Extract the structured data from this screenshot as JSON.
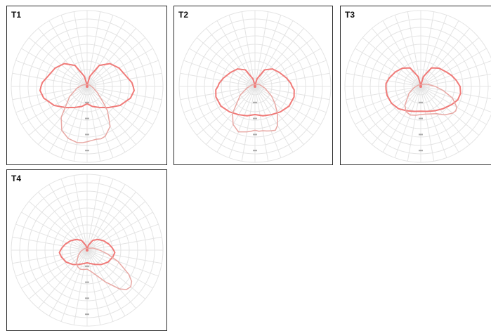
{
  "colors": {
    "grid": "#e4e4e4",
    "primary_curve": "#f07a78",
    "secondary_curve": "#e8a8a4",
    "tick_label": "#8a8a8a",
    "border": "#2b2b2b"
  },
  "chart_data": [
    {
      "type": "polar",
      "title": "T1",
      "grid": true,
      "rings": 9,
      "spokes_deg": 10,
      "rmax": 1.0,
      "series": [
        {
          "angles_deg": [
            0,
            15,
            30,
            45,
            60,
            75,
            85,
            90,
            95,
            105,
            120,
            135,
            150,
            165,
            180,
            195,
            210,
            225,
            240,
            255,
            265,
            270,
            275,
            285,
            300,
            315,
            330,
            345,
            360
          ],
          "r": [
            0.3,
            0.36,
            0.42,
            0.52,
            0.66,
            0.78,
            0.82,
            0.8,
            0.78,
            0.7,
            0.64,
            0.56,
            0.42,
            0.18,
            0.02,
            0.18,
            0.42,
            0.56,
            0.64,
            0.7,
            0.78,
            0.8,
            0.82,
            0.78,
            0.66,
            0.52,
            0.42,
            0.36,
            0.3
          ]
        },
        {
          "angles_deg": [
            0,
            5,
            10,
            15,
            20,
            30,
            40,
            45,
            50,
            60,
            80,
            120,
            160,
            180,
            200,
            220,
            240,
            260,
            280,
            300,
            320,
            330,
            340,
            350,
            355,
            360
          ],
          "r": [
            0.96,
            0.94,
            0.93,
            0.94,
            0.92,
            0.8,
            0.55,
            0.4,
            0.3,
            0.2,
            0.1,
            0.05,
            0.03,
            0.02,
            0.03,
            0.04,
            0.06,
            0.1,
            0.18,
            0.35,
            0.7,
            0.88,
            0.96,
            0.99,
            0.98,
            0.96
          ]
        }
      ],
      "tick_labels": [
        "",
        "",
        "",
        "",
        ""
      ]
    },
    {
      "type": "polar",
      "title": "T2",
      "grid": true,
      "rings": 9,
      "spokes_deg": 10,
      "rmax": 1.0,
      "series": [
        {
          "angles_deg": [
            0,
            15,
            30,
            45,
            60,
            75,
            85,
            90,
            95,
            105,
            120,
            135,
            150,
            165,
            180,
            195,
            210,
            225,
            240,
            255,
            265,
            270,
            275,
            285,
            300,
            315,
            330,
            345,
            360
          ],
          "r": [
            0.5,
            0.54,
            0.58,
            0.64,
            0.7,
            0.72,
            0.7,
            0.66,
            0.64,
            0.58,
            0.5,
            0.44,
            0.34,
            0.14,
            0.02,
            0.14,
            0.34,
            0.44,
            0.5,
            0.58,
            0.64,
            0.66,
            0.7,
            0.72,
            0.7,
            0.64,
            0.58,
            0.54,
            0.5
          ]
        },
        {
          "angles_deg": [
            0,
            5,
            10,
            15,
            20,
            25,
            30,
            35,
            40,
            50,
            60,
            80,
            120,
            160,
            180,
            200,
            240,
            280,
            300,
            320,
            330,
            340,
            350,
            355,
            360
          ],
          "r": [
            0.78,
            0.8,
            0.8,
            0.82,
            0.84,
            0.86,
            0.8,
            0.7,
            0.62,
            0.46,
            0.34,
            0.18,
            0.08,
            0.03,
            0.02,
            0.03,
            0.06,
            0.14,
            0.3,
            0.62,
            0.78,
            0.86,
            0.82,
            0.8,
            0.78
          ]
        }
      ],
      "tick_labels": [
        "",
        "",
        "",
        "",
        ""
      ]
    },
    {
      "type": "polar",
      "title": "T3",
      "grid": true,
      "rings": 9,
      "spokes_deg": 10,
      "rmax": 1.0,
      "series": [
        {
          "angles_deg": [
            0,
            15,
            30,
            45,
            60,
            70,
            80,
            90,
            100,
            110,
            120,
            135,
            150,
            165,
            180,
            195,
            210,
            225,
            240,
            255,
            265,
            270,
            275,
            285,
            300,
            315,
            330,
            345,
            360
          ],
          "r": [
            0.44,
            0.46,
            0.5,
            0.56,
            0.64,
            0.7,
            0.72,
            0.7,
            0.64,
            0.58,
            0.52,
            0.46,
            0.38,
            0.18,
            0.02,
            0.18,
            0.38,
            0.46,
            0.52,
            0.58,
            0.62,
            0.62,
            0.62,
            0.62,
            0.6,
            0.56,
            0.5,
            0.46,
            0.44
          ]
        },
        {
          "angles_deg": [
            0,
            10,
            20,
            30,
            40,
            50,
            55,
            60,
            70,
            80,
            90,
            110,
            140,
            170,
            180,
            200,
            240,
            280,
            300,
            320,
            330,
            340,
            350,
            360
          ],
          "r": [
            0.5,
            0.5,
            0.52,
            0.56,
            0.66,
            0.74,
            0.76,
            0.74,
            0.6,
            0.4,
            0.26,
            0.12,
            0.05,
            0.02,
            0.02,
            0.03,
            0.05,
            0.12,
            0.24,
            0.44,
            0.52,
            0.54,
            0.52,
            0.5
          ]
        }
      ],
      "tick_labels": [
        "",
        "",
        "",
        "",
        ""
      ]
    },
    {
      "type": "polar",
      "title": "T4",
      "grid": true,
      "rings": 9,
      "spokes_deg": 10,
      "rmax": 1.0,
      "series": [
        {
          "angles_deg": [
            0,
            15,
            30,
            45,
            60,
            75,
            85,
            90,
            95,
            105,
            120,
            135,
            150,
            165,
            180,
            195,
            210,
            225,
            240,
            255,
            265,
            270,
            275,
            285,
            300,
            315,
            330,
            345,
            360
          ],
          "r": [
            0.2,
            0.22,
            0.26,
            0.32,
            0.38,
            0.42,
            0.44,
            0.42,
            0.4,
            0.36,
            0.3,
            0.24,
            0.18,
            0.08,
            0.02,
            0.08,
            0.18,
            0.24,
            0.3,
            0.36,
            0.4,
            0.42,
            0.44,
            0.42,
            0.38,
            0.32,
            0.26,
            0.22,
            0.2
          ]
        },
        {
          "angles_deg": [
            0,
            10,
            20,
            30,
            40,
            45,
            50,
            55,
            60,
            70,
            80,
            90,
            110,
            140,
            170,
            180,
            200,
            240,
            280,
            300,
            320,
            330,
            340,
            350,
            360
          ],
          "r": [
            0.3,
            0.34,
            0.42,
            0.58,
            0.8,
            0.88,
            0.9,
            0.86,
            0.76,
            0.52,
            0.32,
            0.2,
            0.1,
            0.04,
            0.02,
            0.02,
            0.03,
            0.05,
            0.1,
            0.16,
            0.26,
            0.3,
            0.32,
            0.31,
            0.3
          ]
        }
      ],
      "tick_labels": [
        "",
        "",
        "",
        "",
        ""
      ]
    }
  ]
}
